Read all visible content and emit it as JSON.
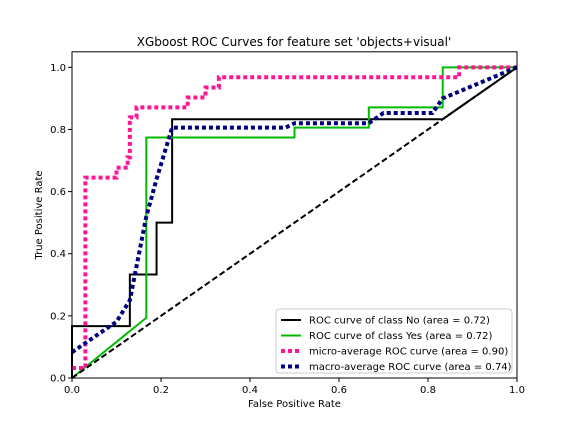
{
  "chart_data": {
    "type": "line",
    "title": "XGboost ROC Curves for feature set 'objects+visual'",
    "xlabel": "False Positive Rate",
    "ylabel": "True Positive Rate",
    "xlim": [
      0.0,
      1.0
    ],
    "ylim": [
      0.0,
      1.05
    ],
    "xticks": [
      {
        "value": 0.0,
        "label": "0.0"
      },
      {
        "value": 0.2,
        "label": "0.2"
      },
      {
        "value": 0.4,
        "label": "0.4"
      },
      {
        "value": 0.6,
        "label": "0.6"
      },
      {
        "value": 0.8,
        "label": "0.8"
      },
      {
        "value": 1.0,
        "label": "1.0"
      }
    ],
    "yticks": [
      {
        "value": 0.0,
        "label": "0.0"
      },
      {
        "value": 0.2,
        "label": "0.2"
      },
      {
        "value": 0.4,
        "label": "0.4"
      },
      {
        "value": 0.6,
        "label": "0.6"
      },
      {
        "value": 0.8,
        "label": "0.8"
      },
      {
        "value": 1.0,
        "label": "1.0"
      }
    ],
    "grid": false,
    "legend_position": "lower-right",
    "series": [
      {
        "name": "ROC curve of class No (area = 0.72)",
        "color": "#000000",
        "style": "solid",
        "x": [
          0.0,
          0.0,
          0.13,
          0.13,
          0.19,
          0.19,
          0.225,
          0.225,
          0.833,
          0.833,
          1.0
        ],
        "y": [
          0.0,
          0.167,
          0.167,
          0.333,
          0.333,
          0.5,
          0.5,
          0.833,
          0.833,
          0.833,
          1.0
        ]
      },
      {
        "name": "ROC curve of class Yes (area = 0.72)",
        "color": "#00bb00",
        "style": "solid",
        "x": [
          0.0,
          0.167,
          0.167,
          0.5,
          0.5,
          0.667,
          0.667,
          0.833,
          0.833,
          1.0
        ],
        "y": [
          0.0,
          0.194,
          0.774,
          0.774,
          0.806,
          0.806,
          0.871,
          0.871,
          1.0,
          1.0
        ]
      },
      {
        "name": "micro-average ROC curve (area = 0.90)",
        "color": "#ff1493",
        "style": "dotted",
        "x": [
          0.0,
          0.03,
          0.03,
          0.1,
          0.1,
          0.125,
          0.125,
          0.13,
          0.13,
          0.145,
          0.145,
          0.2,
          0.2,
          0.26,
          0.26,
          0.3,
          0.3,
          0.33,
          0.33,
          0.35,
          0.35,
          0.87,
          0.87,
          1.0
        ],
        "y": [
          0.032,
          0.032,
          0.645,
          0.645,
          0.677,
          0.677,
          0.71,
          0.71,
          0.839,
          0.839,
          0.871,
          0.871,
          0.871,
          0.871,
          0.903,
          0.903,
          0.935,
          0.935,
          0.968,
          0.968,
          0.968,
          0.968,
          1.0,
          1.0
        ]
      },
      {
        "name": "macro-average ROC curve (area = 0.74)",
        "color": "#000080",
        "style": "dotted",
        "x": [
          0.0,
          0.1,
          0.13,
          0.167,
          0.19,
          0.225,
          0.48,
          0.5,
          0.667,
          0.7,
          0.81,
          0.833,
          1.0
        ],
        "y": [
          0.083,
          0.181,
          0.25,
          0.52,
          0.64,
          0.806,
          0.806,
          0.82,
          0.82,
          0.853,
          0.853,
          0.9,
          1.0
        ]
      },
      {
        "name": "",
        "color": "#000000",
        "style": "dashed",
        "x": [
          0.0,
          1.0
        ],
        "y": [
          0.0,
          1.0
        ]
      }
    ]
  }
}
